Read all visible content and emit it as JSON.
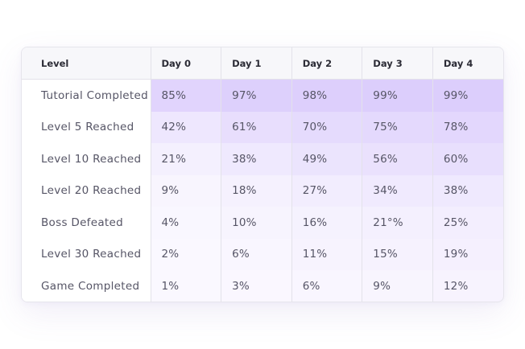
{
  "table": {
    "headers": [
      "Level",
      "Day 0",
      "Day 1",
      "Day 2",
      "Day 3",
      "Day 4"
    ],
    "rows": [
      {
        "label": "Tutorial Completed",
        "values": [
          "85%",
          "97%",
          "98%",
          "99%",
          "99%"
        ]
      },
      {
        "label": "Level 5 Reached",
        "values": [
          "42%",
          "61%",
          "70%",
          "75%",
          "78%"
        ]
      },
      {
        "label": "Level 10 Reached",
        "values": [
          "21%",
          "38%",
          "49%",
          "56%",
          "60%"
        ]
      },
      {
        "label": "Level 20 Reached",
        "values": [
          "9%",
          "18%",
          "27%",
          "34%",
          "38%"
        ]
      },
      {
        "label": "Boss Defeated",
        "values": [
          "4%",
          "10%",
          "16%",
          "21°%",
          "25%"
        ]
      },
      {
        "label": "Level 30 Reached",
        "values": [
          "2%",
          "6%",
          "11%",
          "15%",
          "19%"
        ]
      },
      {
        "label": "Game Completed",
        "values": [
          "1%",
          "3%",
          "6%",
          "9%",
          "12%"
        ]
      }
    ]
  },
  "colors": {
    "heat_base": "#8b5cf6",
    "header_bg": "#f7f7fa",
    "border": "#e3e2ea",
    "text": "#565566",
    "header_text": "#2b2b35"
  }
}
